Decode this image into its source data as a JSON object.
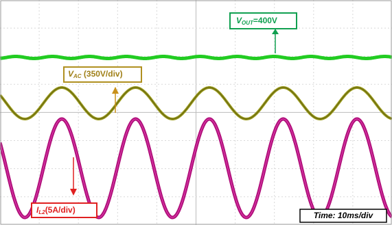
{
  "labels": {
    "vout": {
      "symbol": "V",
      "subscript": "OUT",
      "text": "=400V"
    },
    "vac": {
      "symbol": "V",
      "subscript": "AC",
      "text": " (350V/div)"
    },
    "il2": {
      "symbol": "I",
      "subscript": "L2",
      "text": "(5A/div)"
    },
    "time": "Time: 10ms/div"
  }
}
